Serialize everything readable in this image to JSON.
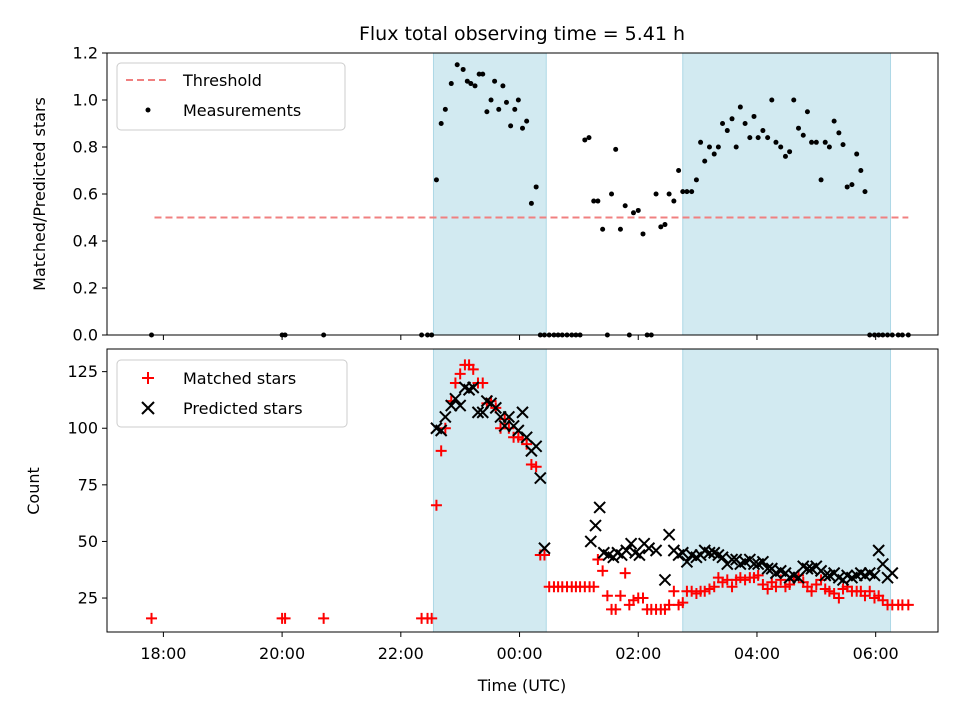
{
  "chart_data": {
    "type": "scatter",
    "title": "Flux total observing time = 5.41 h",
    "xlabel": "Time (UTC)",
    "x_unit": "hours UTC (values above 24 are after midnight of the next day)",
    "xlim": [
      17.05,
      31.05
    ],
    "x_ticks": [
      18,
      20,
      22,
      24,
      26,
      28,
      30
    ],
    "x_tick_labels": [
      "18:00",
      "20:00",
      "22:00",
      "00:00",
      "02:00",
      "04:00",
      "06:00"
    ],
    "shaded_intervals": [
      [
        22.55,
        24.45
      ],
      [
        26.75,
        30.25
      ]
    ],
    "shade_color": "#add8e6",
    "panels": [
      {
        "ylabel": "Matched/Predicted stars",
        "ylim": [
          0,
          1.2
        ],
        "y_ticks": [
          0.0,
          0.2,
          0.4,
          0.6,
          0.8,
          1.0,
          1.2
        ],
        "y_tick_labels": [
          "0.0",
          "0.2",
          "0.4",
          "0.6",
          "0.8",
          "1.0",
          "1.2"
        ],
        "legend": {
          "position": "upper left",
          "entries": [
            "Threshold",
            "Measurements"
          ]
        },
        "series": [
          {
            "name": "Threshold",
            "style": "dashed-line",
            "color": "#f08080",
            "x": [
              17.85,
              30.55
            ],
            "y": [
              0.5,
              0.5
            ]
          },
          {
            "name": "Measurements",
            "style": "dot",
            "color": "#000000",
            "x": [
              17.8,
              20.0,
              20.05,
              20.7,
              22.35,
              22.45,
              22.52,
              22.6,
              22.68,
              22.75,
              22.85,
              22.95,
              23.05,
              23.12,
              23.18,
              23.25,
              23.32,
              23.38,
              23.45,
              23.52,
              23.58,
              23.65,
              23.72,
              23.78,
              23.85,
              23.92,
              23.98,
              24.05,
              24.12,
              24.2,
              24.28,
              24.35,
              24.42,
              24.5,
              24.58,
              24.65,
              24.72,
              24.8,
              24.88,
              24.95,
              25.02,
              25.1,
              25.17,
              25.25,
              25.32,
              25.4,
              25.48,
              25.55,
              25.62,
              25.7,
              25.78,
              25.85,
              25.92,
              26.0,
              26.08,
              26.15,
              26.22,
              26.3,
              26.38,
              26.45,
              26.52,
              26.6,
              26.68,
              26.75,
              26.82,
              26.9,
              26.98,
              27.05,
              27.12,
              27.2,
              27.28,
              27.35,
              27.42,
              27.5,
              27.58,
              27.65,
              27.72,
              27.8,
              27.88,
              27.95,
              28.02,
              28.1,
              28.18,
              28.25,
              28.32,
              28.4,
              28.48,
              28.55,
              28.62,
              28.7,
              28.78,
              28.85,
              28.92,
              29.0,
              29.08,
              29.15,
              29.22,
              29.3,
              29.38,
              29.45,
              29.52,
              29.6,
              29.68,
              29.75,
              29.82,
              29.9,
              29.98,
              30.05,
              30.12,
              30.2,
              30.28,
              30.38,
              30.45,
              30.55
            ],
            "y": [
              0.0,
              0.0,
              0.0,
              0.0,
              0.0,
              0.0,
              0.0,
              0.66,
              0.9,
              0.96,
              1.07,
              1.15,
              1.13,
              1.08,
              1.07,
              1.06,
              1.11,
              1.11,
              0.95,
              1.0,
              1.08,
              0.96,
              1.06,
              0.99,
              0.89,
              0.96,
              1.0,
              0.88,
              0.91,
              0.56,
              0.63,
              0.0,
              0.0,
              0.0,
              0.0,
              0.0,
              0.0,
              0.0,
              0.0,
              0.0,
              0.0,
              0.83,
              0.84,
              0.57,
              0.57,
              0.45,
              0.0,
              0.6,
              0.79,
              0.45,
              0.55,
              0.0,
              0.52,
              0.53,
              0.43,
              0.0,
              0.0,
              0.6,
              0.46,
              0.47,
              0.6,
              0.57,
              0.7,
              0.61,
              0.61,
              0.61,
              0.66,
              0.82,
              0.74,
              0.8,
              0.77,
              0.8,
              0.9,
              0.87,
              0.92,
              0.8,
              0.97,
              0.9,
              0.84,
              0.93,
              0.84,
              0.87,
              0.84,
              1.0,
              0.82,
              0.8,
              0.76,
              0.78,
              1.0,
              0.88,
              0.85,
              0.95,
              0.82,
              0.82,
              0.66,
              0.82,
              0.8,
              0.91,
              0.86,
              0.81,
              0.63,
              0.64,
              0.77,
              0.7,
              0.61,
              0.0,
              0.0,
              0.0,
              0.0,
              0.0,
              0.0,
              0.0,
              0.0,
              0.0
            ]
          }
        ]
      },
      {
        "ylabel": "Count",
        "ylim": [
          10,
          135
        ],
        "y_ticks": [
          25,
          50,
          75,
          100,
          125
        ],
        "y_tick_labels": [
          "25",
          "50",
          "75",
          "100",
          "125"
        ],
        "legend": {
          "position": "upper left",
          "entries": [
            "Matched stars",
            "Predicted stars"
          ]
        },
        "series": [
          {
            "name": "Matched stars",
            "style": "plus",
            "color": "#ff0000",
            "x": [
              17.8,
              20.0,
              20.05,
              20.7,
              22.35,
              22.45,
              22.52,
              22.6,
              22.68,
              22.75,
              22.85,
              22.92,
              23.0,
              23.08,
              23.15,
              23.22,
              23.3,
              23.38,
              23.45,
              23.52,
              23.6,
              23.68,
              23.75,
              23.82,
              23.9,
              23.98,
              24.05,
              24.12,
              24.2,
              24.28,
              24.35,
              24.42,
              24.5,
              24.58,
              24.65,
              24.72,
              24.8,
              24.88,
              24.95,
              25.02,
              25.1,
              25.18,
              25.25,
              25.32,
              25.4,
              25.48,
              25.55,
              25.62,
              25.7,
              25.78,
              25.85,
              25.92,
              26.0,
              26.08,
              26.15,
              26.22,
              26.3,
              26.38,
              26.45,
              26.52,
              26.6,
              26.68,
              26.75,
              26.82,
              26.9,
              26.98,
              27.05,
              27.12,
              27.2,
              27.28,
              27.35,
              27.42,
              27.5,
              27.58,
              27.65,
              27.72,
              27.8,
              27.88,
              27.95,
              28.02,
              28.1,
              28.18,
              28.25,
              28.32,
              28.4,
              28.48,
              28.55,
              28.62,
              28.7,
              28.78,
              28.85,
              28.92,
              29.0,
              29.08,
              29.15,
              29.22,
              29.3,
              29.38,
              29.45,
              29.52,
              29.6,
              29.68,
              29.75,
              29.82,
              29.9,
              29.98,
              30.05,
              30.12,
              30.2,
              30.28,
              30.38,
              30.45,
              30.55
            ],
            "y": [
              16,
              16,
              16,
              16,
              16,
              16,
              16,
              66,
              90,
              100,
              112,
              120,
              124,
              128,
              128,
              126,
              120,
              120,
              111,
              112,
              109,
              100,
              104,
              100,
              96,
              96,
              95,
              93,
              84,
              83,
              44,
              44,
              30,
              30,
              30,
              30,
              30,
              30,
              30,
              30,
              30,
              30,
              30,
              42,
              37,
              26,
              20,
              20,
              26,
              36,
              22,
              24,
              25,
              25,
              20,
              20,
              20,
              20,
              20,
              22,
              28,
              22,
              23,
              28,
              28,
              27,
              28,
              28,
              29,
              30,
              34,
              32,
              33,
              30,
              33,
              34,
              33,
              34,
              34,
              35,
              31,
              29,
              32,
              30,
              33,
              30,
              31,
              33,
              35,
              32,
              30,
              28,
              31,
              33,
              29,
              28,
              27,
              25,
              29,
              30,
              28,
              28,
              28,
              26,
              28,
              25,
              26,
              24,
              22,
              22,
              22,
              22,
              22
            ]
          },
          {
            "name": "Predicted stars",
            "style": "x",
            "color": "#000000",
            "x": [
              22.6,
              22.68,
              22.75,
              22.85,
              22.92,
              23.0,
              23.08,
              23.15,
              23.22,
              23.3,
              23.38,
              23.45,
              23.52,
              23.6,
              23.68,
              23.75,
              23.82,
              23.9,
              23.98,
              24.05,
              24.12,
              24.2,
              24.28,
              24.35,
              24.42,
              25.2,
              25.28,
              25.35,
              25.42,
              25.5,
              25.58,
              25.65,
              25.72,
              25.8,
              25.88,
              25.95,
              26.02,
              26.1,
              26.18,
              26.3,
              26.45,
              26.52,
              26.6,
              26.68,
              26.75,
              26.82,
              26.9,
              26.98,
              27.05,
              27.12,
              27.2,
              27.28,
              27.35,
              27.42,
              27.5,
              27.58,
              27.65,
              27.72,
              27.8,
              27.88,
              27.95,
              28.02,
              28.1,
              28.18,
              28.25,
              28.32,
              28.4,
              28.48,
              28.55,
              28.62,
              28.7,
              28.78,
              28.85,
              28.92,
              29.0,
              29.08,
              29.15,
              29.22,
              29.3,
              29.38,
              29.45,
              29.52,
              29.6,
              29.68,
              29.75,
              29.82,
              29.9,
              29.98,
              30.05,
              30.12,
              30.2,
              30.28
            ],
            "y": [
              100,
              99,
              105,
              110,
              113,
              110,
              118,
              117,
              118,
              107,
              107,
              112,
              111,
              109,
              105,
              101,
              105,
              101,
              99,
              107,
              96,
              90,
              92,
              78,
              47,
              50,
              57,
              65,
              45,
              44,
              43,
              45,
              44,
              46,
              49,
              45,
              44,
              49,
              47,
              46,
              33,
              53,
              46,
              44,
              45,
              41,
              44,
              43,
              44,
              46,
              45,
              45,
              44,
              43,
              40,
              42,
              42,
              40,
              41,
              42,
              40,
              40,
              41,
              38,
              38,
              36,
              37,
              36,
              34,
              35,
              34,
              39,
              38,
              38,
              39,
              37,
              35,
              35,
              36,
              34,
              33,
              35,
              34,
              35,
              36,
              35,
              36,
              35,
              46,
              40,
              34,
              36
            ]
          }
        ]
      }
    ]
  }
}
